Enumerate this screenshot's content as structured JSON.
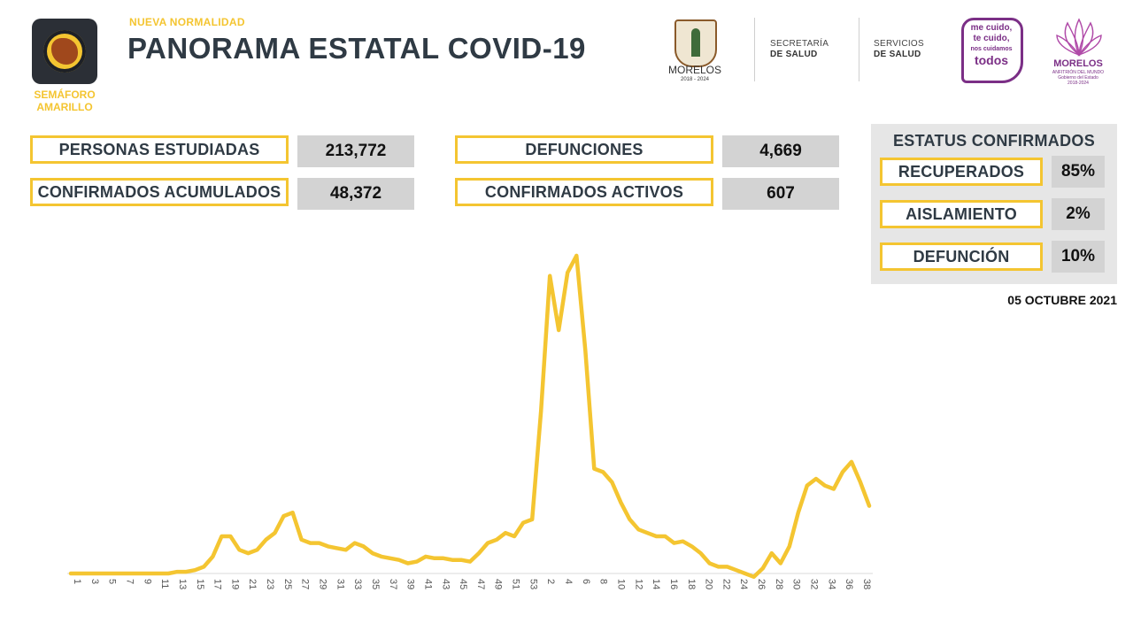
{
  "header": {
    "semaforo_label": "SEMÁFORO AMARILLO",
    "kicker": "NUEVA NORMALIDAD",
    "title": "PANORAMA ESTATAL COVID-19",
    "state_name": "MORELOS",
    "state_years": "2018 - 2024",
    "inst1_line1": "SECRETARÍA",
    "inst1_line2": "DE SALUD",
    "inst2_line1": "SERVICIOS",
    "inst2_line2": "DE SALUD",
    "slogan_line1": "me cuido,",
    "slogan_line2": "te cuido,",
    "slogan_line3": "nos cuidamos",
    "slogan_line4": "todos",
    "gov_name": "MORELOS",
    "gov_sub1": "ANFITRIÓN DEL MUNDO",
    "gov_sub2": "Gobierno del Estado",
    "gov_sub3": "2018-2024"
  },
  "stats": {
    "personas_estudiadas_label": "PERSONAS ESTUDIADAS",
    "personas_estudiadas_value": "213,772",
    "confirmados_acumulados_label": "CONFIRMADOS ACUMULADOS",
    "confirmados_acumulados_value": "48,372",
    "defunciones_label": "DEFUNCIONES",
    "defunciones_value": "4,669",
    "confirmados_activos_label": "CONFIRMADOS ACTIVOS",
    "confirmados_activos_value": "607"
  },
  "status": {
    "title": "ESTATUS CONFIRMADOS",
    "recuperados_label": "RECUPERADOS",
    "recuperados_value": "85%",
    "aislamiento_label": "AISLAMIENTO",
    "aislamiento_value": "2%",
    "defuncion_label": "DEFUNCIÓN",
    "defuncion_value": "10%"
  },
  "date": "05 OCTUBRE 2021",
  "colors": {
    "accent": "#f4c531",
    "text": "#2f3a44",
    "value_bg": "#d3d3d3",
    "panel_bg": "#e6e6e6",
    "brand_purple": "#7b2f86"
  },
  "chart_data": {
    "type": "line",
    "title": "",
    "xlabel": "",
    "ylabel": "",
    "ylim": [
      0,
      100
    ],
    "x_tick_labels": [
      "1",
      "3",
      "5",
      "7",
      "9",
      "11",
      "13",
      "15",
      "17",
      "19",
      "21",
      "23",
      "25",
      "27",
      "29",
      "31",
      "33",
      "35",
      "37",
      "39",
      "41",
      "43",
      "45",
      "47",
      "49",
      "51",
      "53",
      "2",
      "4",
      "6",
      "8",
      "10",
      "12",
      "14",
      "16",
      "18",
      "20",
      "22",
      "24",
      "26",
      "28",
      "30",
      "32",
      "34",
      "36",
      "38"
    ],
    "series": [
      {
        "color": "#f4c531",
        "values": [
          0,
          0,
          0,
          0,
          0,
          0,
          0,
          0,
          0,
          0,
          0,
          0,
          0.5,
          0.5,
          1,
          2,
          5,
          11,
          11,
          7,
          6,
          7,
          10,
          12,
          17,
          18,
          10,
          9,
          9,
          8,
          7.5,
          7,
          9,
          8,
          6,
          5,
          4.5,
          4,
          3,
          3.5,
          5,
          4.5,
          4.5,
          4,
          4,
          3.5,
          6,
          9,
          10,
          12,
          11,
          15,
          16,
          48,
          88,
          72,
          89,
          94,
          66,
          31,
          30,
          27,
          21,
          16,
          13,
          12,
          11,
          11,
          9,
          9.5,
          8,
          6,
          3,
          2,
          2,
          1,
          0,
          -1,
          1.5,
          6,
          3,
          8,
          18,
          26,
          28,
          26,
          25,
          30,
          33,
          27,
          20
        ]
      }
    ]
  }
}
